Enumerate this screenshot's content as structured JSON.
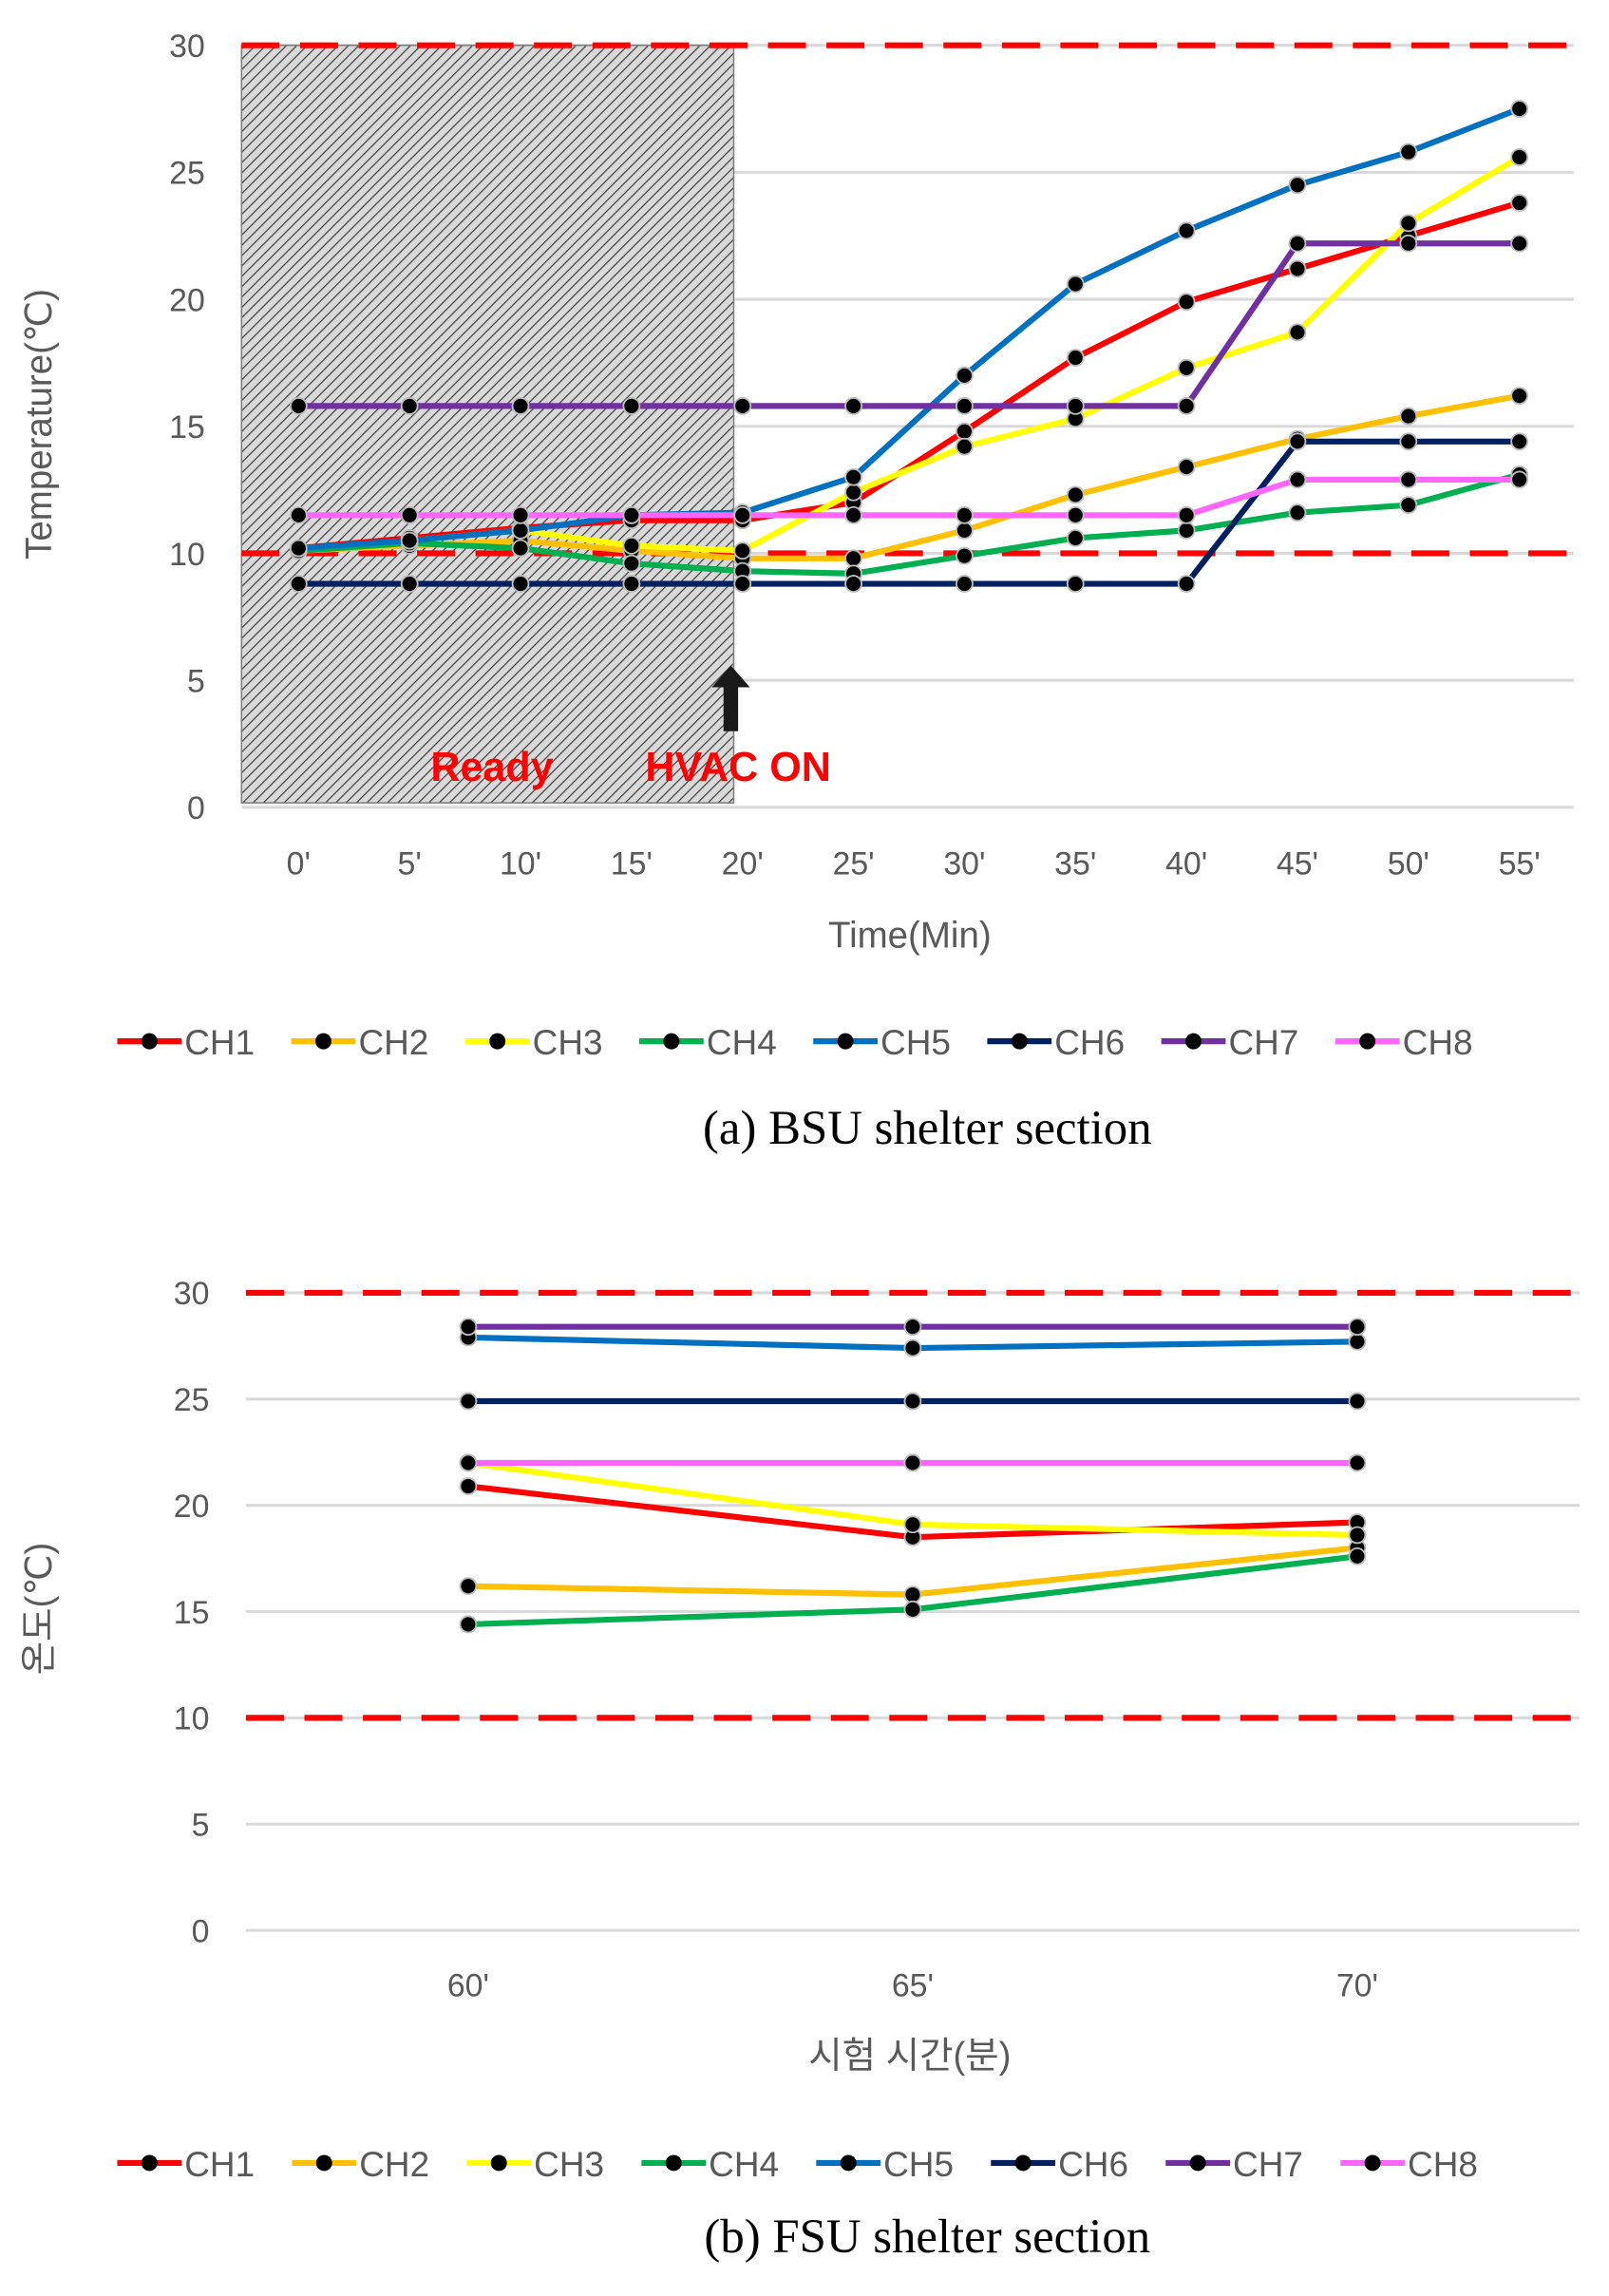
{
  "colors": {
    "CH1": "#ff0000",
    "CH2": "#ffc000",
    "CH3": "#ffff00",
    "CH4": "#00b050",
    "CH5": "#0070c0",
    "CH6": "#002060",
    "CH7": "#7030a0",
    "CH8": "#ff66ff",
    "limit": "#ff0000"
  },
  "chart_data": [
    {
      "type": "line",
      "caption": "(a) BSU shelter section",
      "xlabel": "Time(Min)",
      "ylabel": "Temperature(℃)",
      "categories": [
        "0'",
        "5'",
        "10'",
        "15'",
        "20'",
        "25'",
        "30'",
        "35'",
        "40'",
        "45'",
        "50'",
        "55'"
      ],
      "ylim": [
        0,
        30
      ],
      "yticks": [
        0,
        5,
        10,
        15,
        20,
        25,
        30
      ],
      "grid": true,
      "legend": "bottom",
      "limit_lines": [
        30,
        10
      ],
      "shaded_region": {
        "from": "0'",
        "to": "20'",
        "label": "Ready"
      },
      "annotations": [
        {
          "text": "HVAC ON",
          "at": "20'"
        }
      ],
      "series": [
        {
          "name": "CH1",
          "values": [
            10.2,
            10.6,
            11.0,
            11.3,
            11.3,
            12.0,
            14.8,
            17.7,
            19.9,
            21.2,
            22.5,
            23.8
          ]
        },
        {
          "name": "CH2",
          "values": [
            10.1,
            10.3,
            10.5,
            10.1,
            9.8,
            9.8,
            10.9,
            12.3,
            13.4,
            14.5,
            15.4,
            16.2
          ]
        },
        {
          "name": "CH3",
          "values": [
            10.1,
            10.5,
            10.9,
            10.3,
            10.1,
            12.4,
            14.2,
            15.3,
            17.3,
            18.7,
            23.0,
            25.6
          ]
        },
        {
          "name": "CH4",
          "values": [
            10.1,
            10.4,
            10.2,
            9.6,
            9.3,
            9.2,
            9.9,
            10.6,
            10.9,
            11.6,
            11.9,
            13.1
          ]
        },
        {
          "name": "CH5",
          "values": [
            10.2,
            10.5,
            10.9,
            11.5,
            11.6,
            13.0,
            17.0,
            20.6,
            22.7,
            24.5,
            25.8,
            27.5
          ]
        },
        {
          "name": "CH6",
          "values": [
            8.8,
            8.8,
            8.8,
            8.8,
            8.8,
            8.8,
            8.8,
            8.8,
            8.8,
            14.4,
            14.4,
            14.4
          ]
        },
        {
          "name": "CH7",
          "values": [
            15.8,
            15.8,
            15.8,
            15.8,
            15.8,
            15.8,
            15.8,
            15.8,
            15.8,
            22.2,
            22.2,
            22.2
          ]
        },
        {
          "name": "CH8",
          "values": [
            11.5,
            11.5,
            11.5,
            11.5,
            11.5,
            11.5,
            11.5,
            11.5,
            11.5,
            12.9,
            12.9,
            12.9
          ]
        }
      ]
    },
    {
      "type": "line",
      "caption": "(b) FSU shelter section",
      "xlabel": "시험 시간(분)",
      "ylabel": "온도(℃)",
      "categories": [
        "60'",
        "65'",
        "70'"
      ],
      "ylim": [
        0,
        30
      ],
      "yticks": [
        0,
        5,
        10,
        15,
        20,
        25,
        30
      ],
      "grid": true,
      "legend": "bottom",
      "limit_lines": [
        30,
        10
      ],
      "series": [
        {
          "name": "CH1",
          "values": [
            20.9,
            18.5,
            19.2
          ]
        },
        {
          "name": "CH2",
          "values": [
            16.2,
            15.8,
            18.0
          ]
        },
        {
          "name": "CH3",
          "values": [
            22.0,
            19.1,
            18.6
          ]
        },
        {
          "name": "CH4",
          "values": [
            14.4,
            15.1,
            17.6
          ]
        },
        {
          "name": "CH5",
          "values": [
            27.9,
            27.4,
            27.7
          ]
        },
        {
          "name": "CH6",
          "values": [
            24.9,
            24.9,
            24.9
          ]
        },
        {
          "name": "CH7",
          "values": [
            28.4,
            28.4,
            28.4
          ]
        },
        {
          "name": "CH8",
          "values": [
            22.0,
            22.0,
            22.0
          ]
        }
      ]
    }
  ]
}
